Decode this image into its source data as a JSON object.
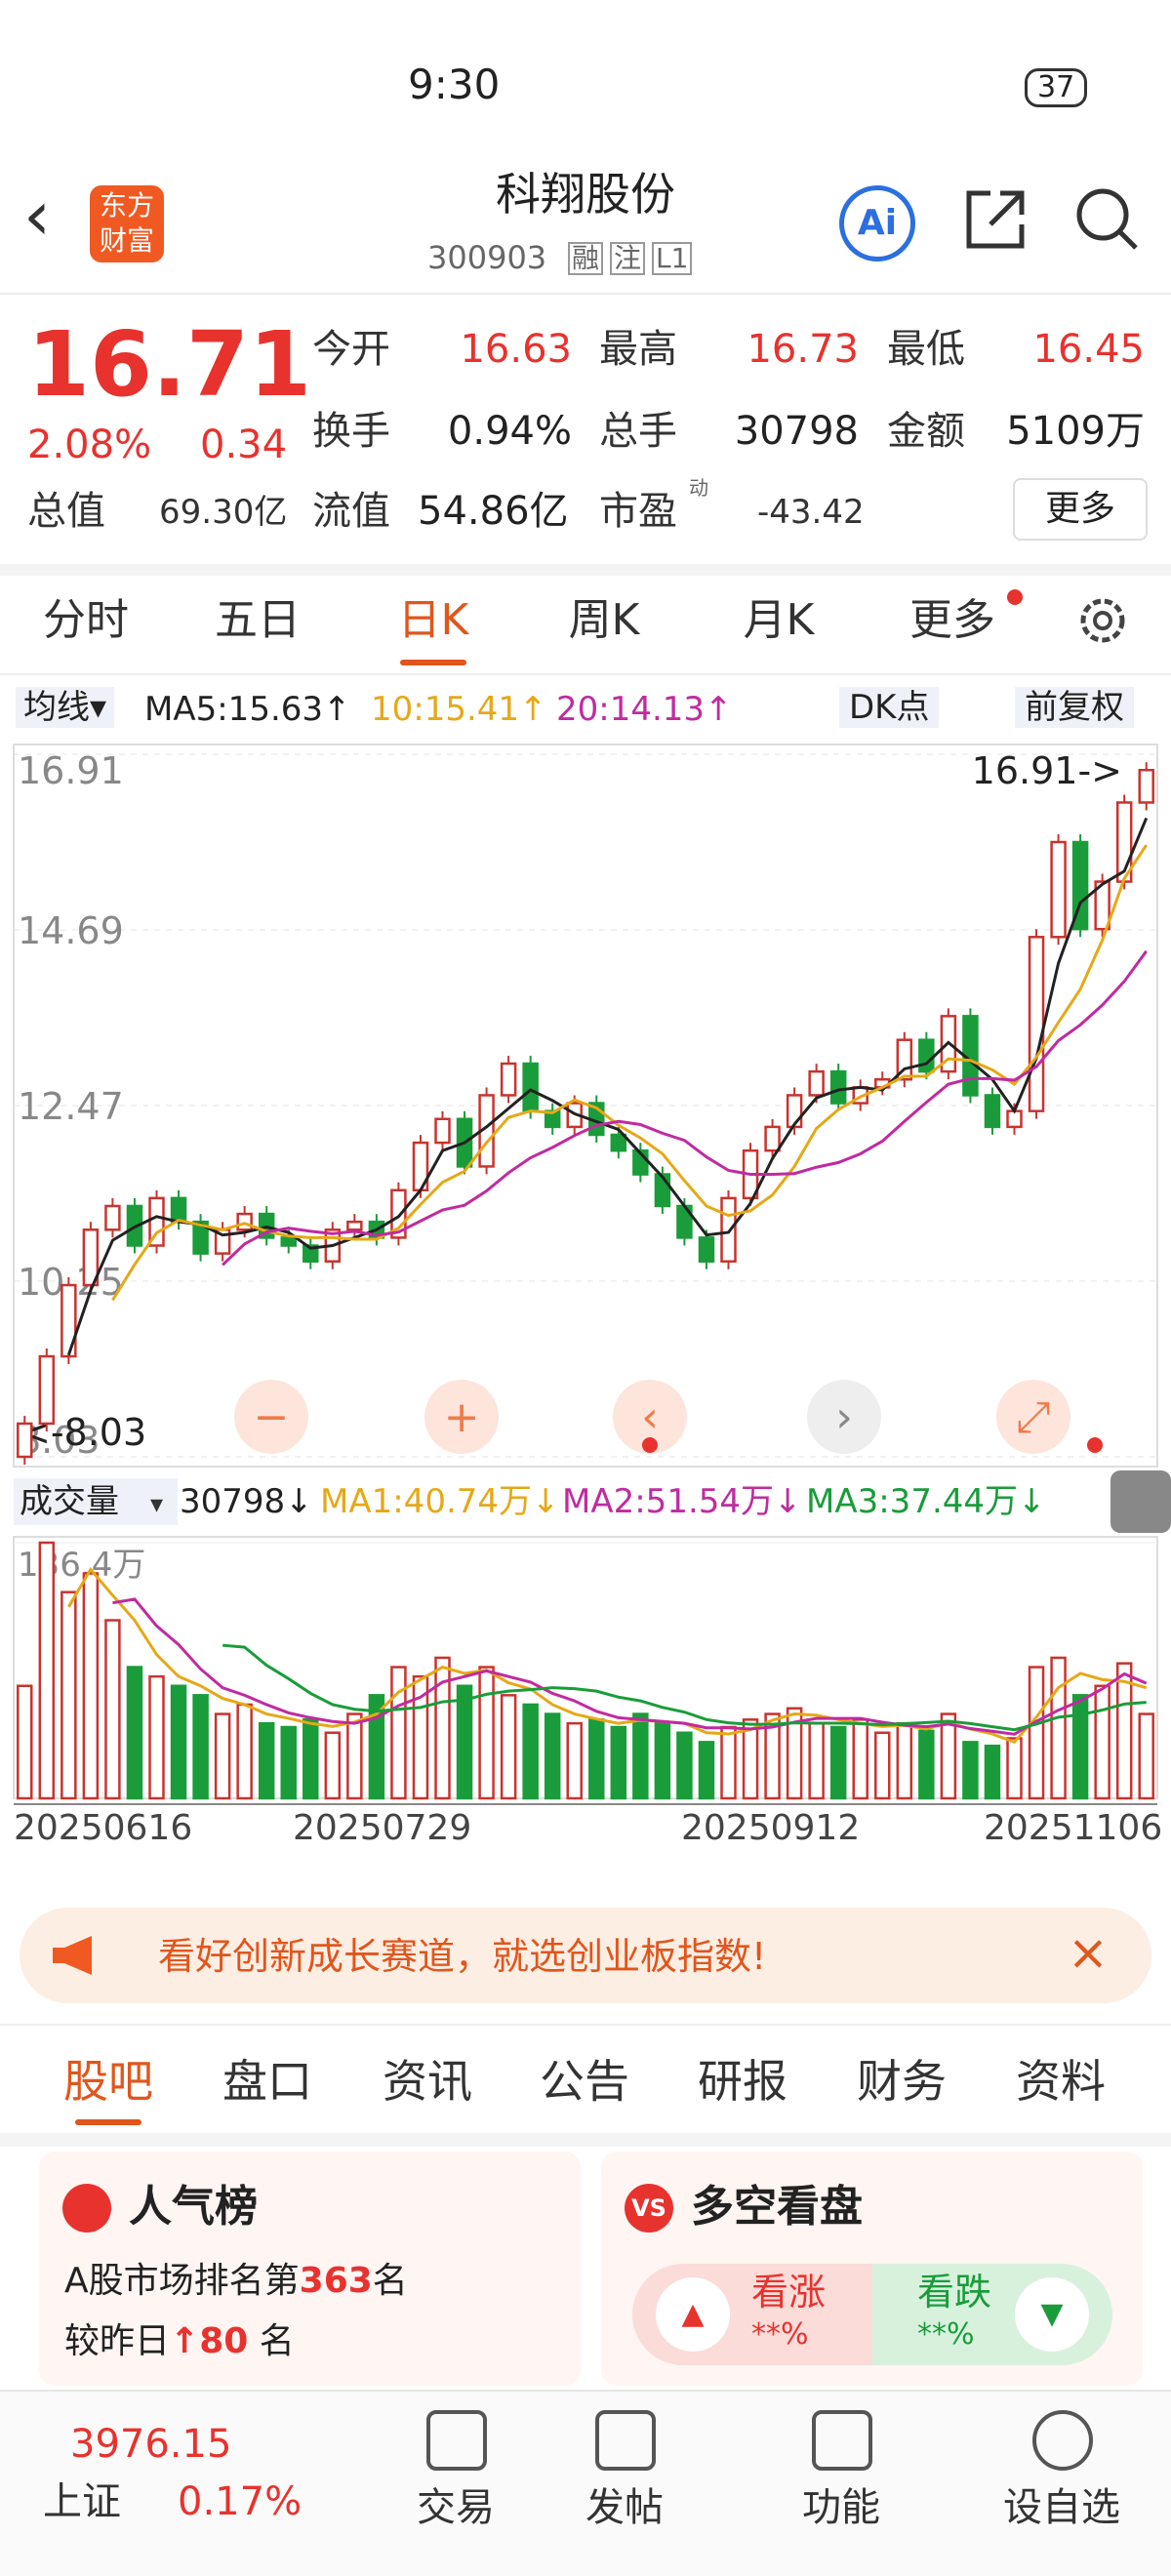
{
  "status": {
    "time": "9:30",
    "battery": "37"
  },
  "header": {
    "logo": "东方财富",
    "title": "科翔股份",
    "code": "300903",
    "badges": [
      "融",
      "注",
      "L1"
    ],
    "ai": "Ai"
  },
  "quote": {
    "price": "16.71",
    "change_pct": "2.08%",
    "change": "0.34",
    "fields": [
      [
        "今开",
        "16.63"
      ],
      [
        "最高",
        "16.73"
      ],
      [
        "最低",
        "16.45"
      ],
      [
        "换手",
        "0.94%"
      ],
      [
        "总手",
        "30798"
      ],
      [
        "金额",
        "5109万"
      ]
    ],
    "market_cap_label": "总值",
    "market_cap": "69.30亿",
    "float_label": "流值",
    "float_value": "54.86亿",
    "pe_label": "市盈",
    "pe_sup": "动",
    "pe": "-43.42",
    "more": "更多"
  },
  "tabs": [
    "分时",
    "五日",
    "日K",
    "周K",
    "月K",
    "更多"
  ],
  "ma_bar": {
    "selector": "均线",
    "ma5": "MA5:15.63↑",
    "ma10": "10:15.41↑",
    "ma20": "20:14.13↑",
    "dk": "DK点",
    "adjust": "前复权"
  },
  "chart_data": {
    "type": "candlestick",
    "closes": [
      8.45,
      9.3,
      10.2,
      10.9,
      11.2,
      10.7,
      11.3,
      11.0,
      10.6,
      10.9,
      11.1,
      10.8,
      10.7,
      10.5,
      10.9,
      11.0,
      10.8,
      11.4,
      12.0,
      12.3,
      11.7,
      12.6,
      13.0,
      12.4,
      12.2,
      12.5,
      12.1,
      11.9,
      11.6,
      11.2,
      10.8,
      10.5,
      11.3,
      11.9,
      12.2,
      12.6,
      12.9,
      12.5,
      12.7,
      12.8,
      13.3,
      12.9,
      13.6,
      12.6,
      12.2,
      12.4,
      14.6,
      15.8,
      14.7,
      15.3,
      16.3,
      16.71
    ],
    "ylim": [
      8.03,
      16.91
    ],
    "yticks": [
      16.91,
      14.69,
      12.47,
      10.25,
      8.03
    ],
    "annotations": {
      "high": "16.91->",
      "low": "<-8.03"
    },
    "volume": {
      "selector": "成交量",
      "current": "30798↓",
      "ma1": "MA1:40.74万↓",
      "ma2": "MA2:51.54万↓",
      "ma3": "MA3:37.44万↓",
      "values": [
        60,
        136.4,
        110,
        120,
        95,
        70,
        65,
        60,
        55,
        45,
        50,
        40,
        38,
        42,
        35,
        45,
        55,
        70,
        65,
        75,
        60,
        70,
        55,
        50,
        45,
        40,
        42,
        38,
        45,
        40,
        35,
        30,
        38,
        42,
        45,
        48,
        40,
        38,
        42,
        35,
        40,
        36,
        45,
        30,
        28,
        32,
        70,
        75,
        55,
        60,
        72,
        45
      ],
      "ylim": [
        0,
        136.4
      ],
      "yticks": [
        {
          "value": 136.4,
          "label": "136.4万"
        }
      ]
    },
    "dates": [
      "20250616",
      "20250729",
      "20250912",
      "20251106"
    ]
  },
  "banner": "看好创新成长赛道，就选创业板指数!",
  "subtabs": [
    "股吧",
    "盘口",
    "资讯",
    "公告",
    "研报",
    "财务",
    "资料"
  ],
  "popularity": {
    "title": "人气榜",
    "rank_prefix": "A股市场排名第",
    "rank": "363",
    "rank_suffix": "名",
    "change_prefix": "较昨日",
    "change": "80",
    "change_suffix": " 名"
  },
  "sentiment": {
    "title": "多空看盘",
    "badge": "VS",
    "bull": "看涨",
    "bull_value": "**%",
    "bear": "看跌",
    "bear_value": "**%"
  },
  "nav": {
    "index_value": "3976.15",
    "index_name": "上证",
    "index_change": "0.17%",
    "items": [
      "交易",
      "发帖",
      "功能",
      "设自选"
    ]
  }
}
